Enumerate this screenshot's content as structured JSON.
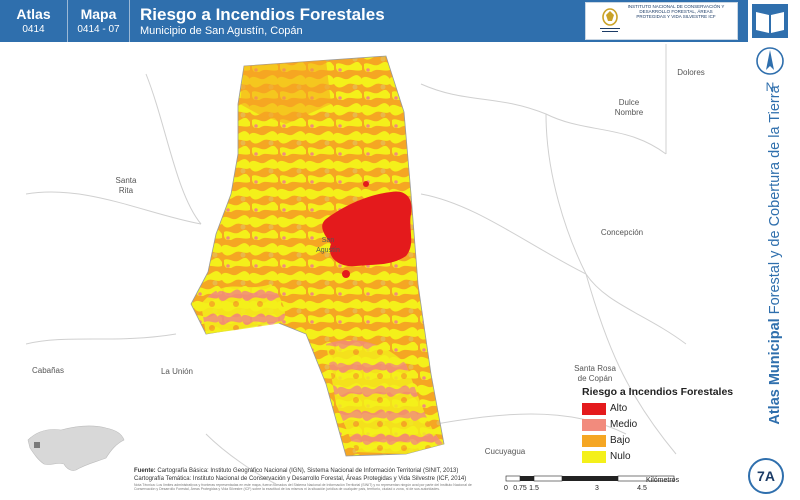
{
  "header": {
    "atlas_label": "Atlas",
    "atlas_code": "0414",
    "map_label": "Mapa",
    "map_code": "0414 - 07",
    "title": "Riesgo a Incendios Forestales",
    "subtitle": "Municipio de San Agustín, Copán",
    "logo_left_text": "GOBIERNO DE LA REPÚBLICA DE HONDURAS",
    "logo_right_text": "INSTITUTO NACIONAL DE CONSERVACIÓN Y DESARROLLO FORESTAL, ÁREAS PROTEGIDAS Y VIDA SILVESTRE ICF"
  },
  "sidebar": {
    "title_bold": "Atlas Municipal",
    "title_rest": " Forestal y de Cobertura de la Tierra",
    "north_label": "N",
    "badge": "7A"
  },
  "map": {
    "places": [
      {
        "id": "dolores",
        "label": "Dolores"
      },
      {
        "id": "dulce-nombre",
        "label": "Dulce\nNombre"
      },
      {
        "id": "santa-rita",
        "label": "Santa\nRita"
      },
      {
        "id": "concepcion",
        "label": "Concepción"
      },
      {
        "id": "san-agustin",
        "label": "San\nAgustín"
      },
      {
        "id": "la-union",
        "label": "La Unión"
      },
      {
        "id": "cabanas",
        "label": "Cabañas"
      },
      {
        "id": "santa-rosa",
        "label": "Santa Rosa\nde Copán"
      },
      {
        "id": "cucuyagua",
        "label": "Cucuyagua"
      }
    ]
  },
  "legend": {
    "title": "Riesgo a Incendios Forestales",
    "items": [
      {
        "label": "Alto",
        "color": "#e41a1c"
      },
      {
        "label": "Medio",
        "color": "#f28b7d"
      },
      {
        "label": "Bajo",
        "color": "#f5a623"
      },
      {
        "label": "Nulo",
        "color": "#f4f01a"
      }
    ]
  },
  "source": {
    "label": "Fuente:",
    "line1": "Cartografía Básica: Instituto Geográfico Nacional (IGN), Sistema Nacional de Información Territorial (SINIT, 2013)",
    "line2": "Cartografía Temática: Instituto Nacional de Conservación y Desarrollo Forestal, Áreas Protegidas y Vida Silvestre (ICF, 2014)",
    "note": "Nota Técnica: Los límites administrativos y fronteras representadas en este mapa, fueron tomados del Sistema Nacional de Información Territorial (SINIT) y no representan ningún aval por parte del Instituto Nacional de Conservación y Desarrollo Forestal, Áreas Protegidas y Vida Silvestre (ICF) sobre la exactitud de los mismos ni la situación jurídica de cualquier país, territorio, ciudad o zona, ni de sus autoridades."
  },
  "scale": {
    "ticks": [
      "0",
      "0.75",
      "1.5",
      "3",
      "4.5"
    ],
    "unit": "Kilómetros"
  },
  "colors": {
    "header": "#2f6fad",
    "alto": "#e41a1c",
    "medio": "#f28b7d",
    "bajo": "#f5a623",
    "nulo": "#f4f01a"
  }
}
